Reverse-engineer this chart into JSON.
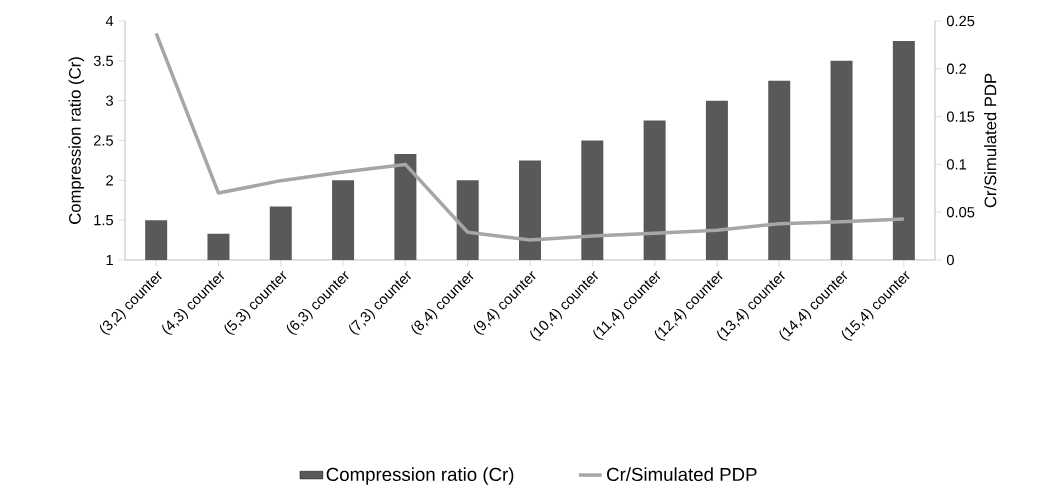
{
  "chart_data": {
    "type": "bar",
    "categories": [
      "(3,2) counter",
      "(4,3) counter",
      "(5,3) counter",
      "(6,3) counter",
      "(7,3) counter",
      "(8,4) counter",
      "(9,4) counter",
      "(10,4) counter",
      "(11,4) counter",
      "(12,4) counter",
      "(13,4) counter",
      "(14,4) counter",
      "(15,4) counter"
    ],
    "series": [
      {
        "name": "Compression ratio (Cr)",
        "color": "#595959",
        "values": [
          1.5,
          1.33,
          1.67,
          2,
          2.33,
          2,
          2.25,
          2.5,
          2.75,
          3,
          3.25,
          3.5,
          3.75
        ]
      },
      {
        "name": "Cr/Simulated PDP",
        "type": "line",
        "axis": "y2",
        "color": "#a6a6a6",
        "values": [
          0.237,
          0.07,
          0.083,
          0.092,
          0.1,
          0.029,
          0.021,
          0.025,
          0.028,
          0.031,
          0.038,
          0.04,
          0.043
        ]
      }
    ],
    "ylabel": "Compression ratio (Cr)",
    "y2label": "Cr/Simulated PDP",
    "ylim": [
      1,
      4
    ],
    "yticks": [
      1,
      1.5,
      2,
      2.5,
      3,
      3.5,
      4
    ],
    "y2lim": [
      0,
      0.25
    ],
    "y2ticks": [
      0,
      0.05,
      0.1,
      0.15,
      0.2,
      0.25
    ],
    "legend": "bottom"
  }
}
